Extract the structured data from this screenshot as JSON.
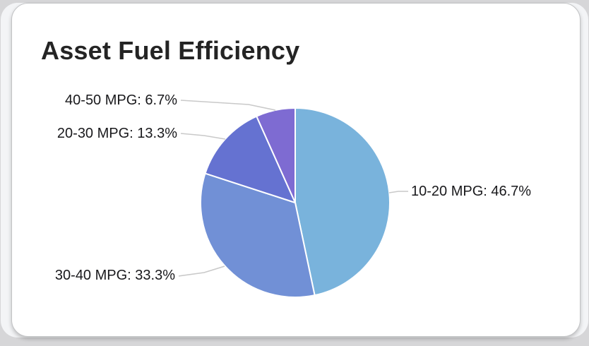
{
  "card": {
    "title": "Asset Fuel Efficiency"
  },
  "chart_data": {
    "type": "pie",
    "title": "Asset Fuel Efficiency",
    "categories": [
      "10-20 MPG",
      "30-40 MPG",
      "20-30 MPG",
      "40-50 MPG"
    ],
    "values": [
      46.7,
      33.3,
      13.3,
      6.7
    ],
    "unit": "percent",
    "slices": [
      {
        "category": "10-20 MPG",
        "value": 46.7,
        "label": "10-20 MPG: 46.7%",
        "color": "#79b3dc"
      },
      {
        "category": "30-40 MPG",
        "value": 33.3,
        "label": "30-40 MPG: 33.3%",
        "color": "#7190d6"
      },
      {
        "category": "20-30 MPG",
        "value": 13.3,
        "label": "20-30 MPG: 13.3%",
        "color": "#6572d1"
      },
      {
        "category": "40-50 MPG",
        "value": 6.7,
        "label": "40-50 MPG: 6.7%",
        "color": "#7e6bd2"
      }
    ],
    "layout_hints": {
      "start_angle_deg": -90,
      "direction": "clockwise",
      "labels": "outside-callout",
      "legend": "none",
      "grid": "off",
      "slice_border_color": "#ffffff",
      "leader_line_color": "#c9c9c9",
      "title_color": "#242424",
      "label_text_color": "#19191c",
      "card_background": "#ffffff",
      "page_background": "#f3f4f6",
      "frame_background": "#d6d6d8"
    }
  }
}
